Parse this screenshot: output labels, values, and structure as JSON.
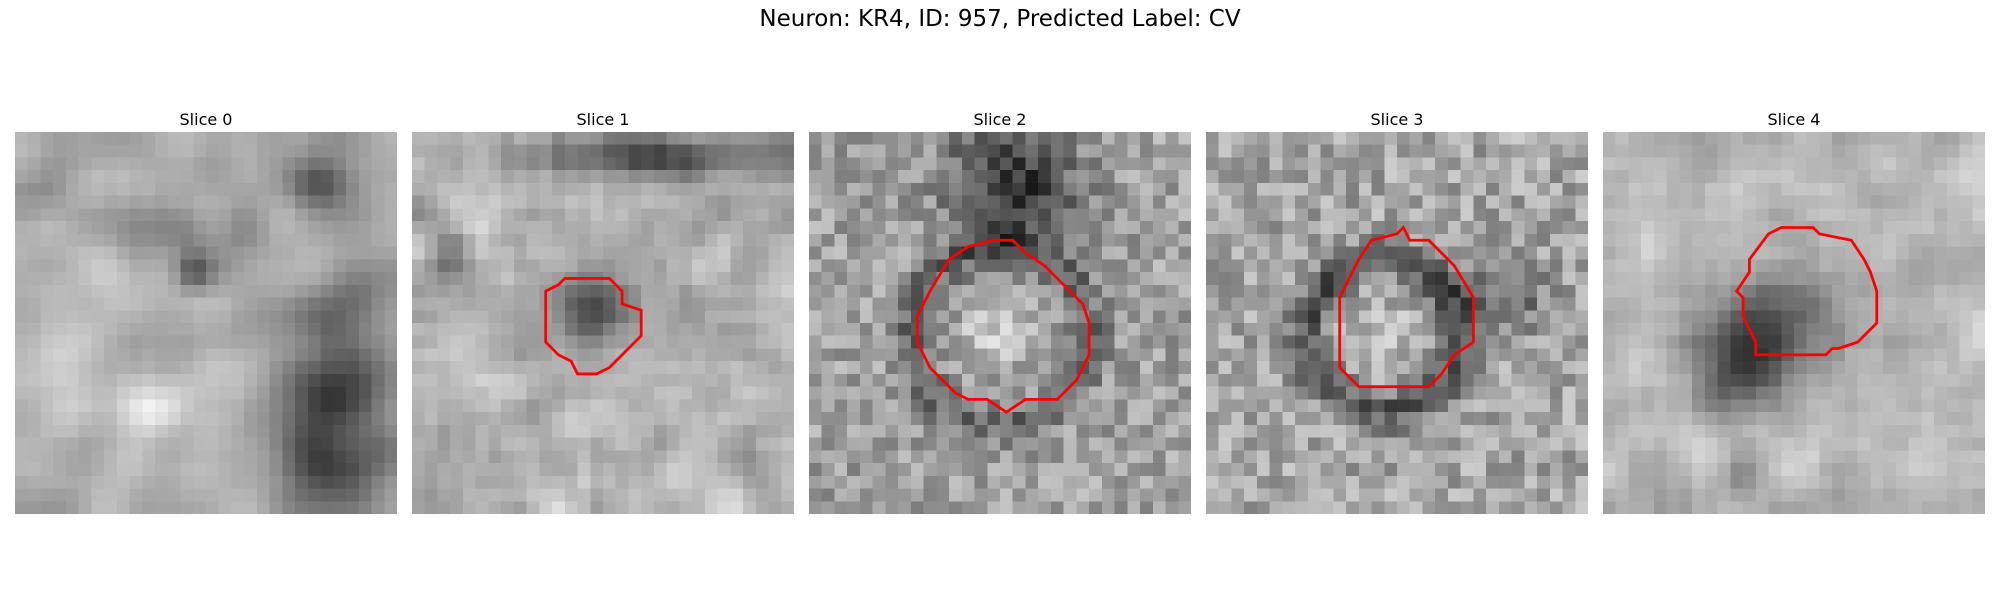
{
  "figure": {
    "title": "Neuron: KR4, ID: 957, Predicted Label: CV",
    "colormap": "grayscale",
    "outline_color": "#ff0000"
  },
  "panels": [
    {
      "title": "Slice 0",
      "has_outline": false
    },
    {
      "title": "Slice 1",
      "has_outline": true
    },
    {
      "title": "Slice 2",
      "has_outline": true
    },
    {
      "title": "Slice 3",
      "has_outline": true
    },
    {
      "title": "Slice 4",
      "has_outline": true
    }
  ]
}
